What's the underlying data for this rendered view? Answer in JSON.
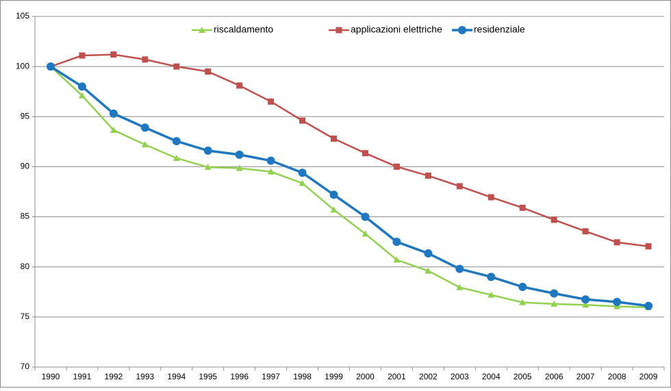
{
  "chart_data": {
    "type": "line",
    "categories": [
      "1990",
      "1991",
      "1992",
      "1993",
      "1994",
      "1995",
      "1996",
      "1997",
      "1998",
      "1999",
      "2000",
      "2001",
      "2002",
      "2003",
      "2004",
      "2005",
      "2006",
      "2007",
      "2008",
      "2009"
    ],
    "series": [
      {
        "name": "riscaldamento",
        "color": "#92d050",
        "marker": "triangle",
        "values": [
          100,
          97.1,
          93.65,
          92.2,
          90.85,
          89.95,
          89.85,
          89.5,
          88.35,
          85.7,
          83.3,
          80.7,
          79.6,
          77.95,
          77.2,
          76.45,
          76.3,
          76.2,
          76.05,
          75.95
        ]
      },
      {
        "name": "applicazioni elettriche",
        "color": "#c0504d",
        "marker": "square",
        "values": [
          100,
          101.1,
          101.2,
          100.7,
          100,
          99.5,
          98.1,
          96.5,
          94.6,
          92.8,
          91.35,
          90.0,
          89.1,
          88.05,
          86.95,
          85.9,
          84.7,
          83.55,
          82.45,
          82.05
        ]
      },
      {
        "name": "residenziale",
        "color": "#1f77c0",
        "marker": "circle",
        "values": [
          100,
          98,
          95.3,
          93.9,
          92.55,
          91.6,
          91.2,
          90.6,
          89.4,
          87.2,
          85.0,
          82.5,
          81.35,
          79.8,
          79.0,
          78.0,
          77.35,
          76.75,
          76.5,
          76.1
        ]
      }
    ],
    "ylim": [
      70,
      105
    ],
    "yticks": [
      70,
      75,
      80,
      85,
      90,
      95,
      100,
      105
    ],
    "grid": true,
    "legend": "top"
  }
}
